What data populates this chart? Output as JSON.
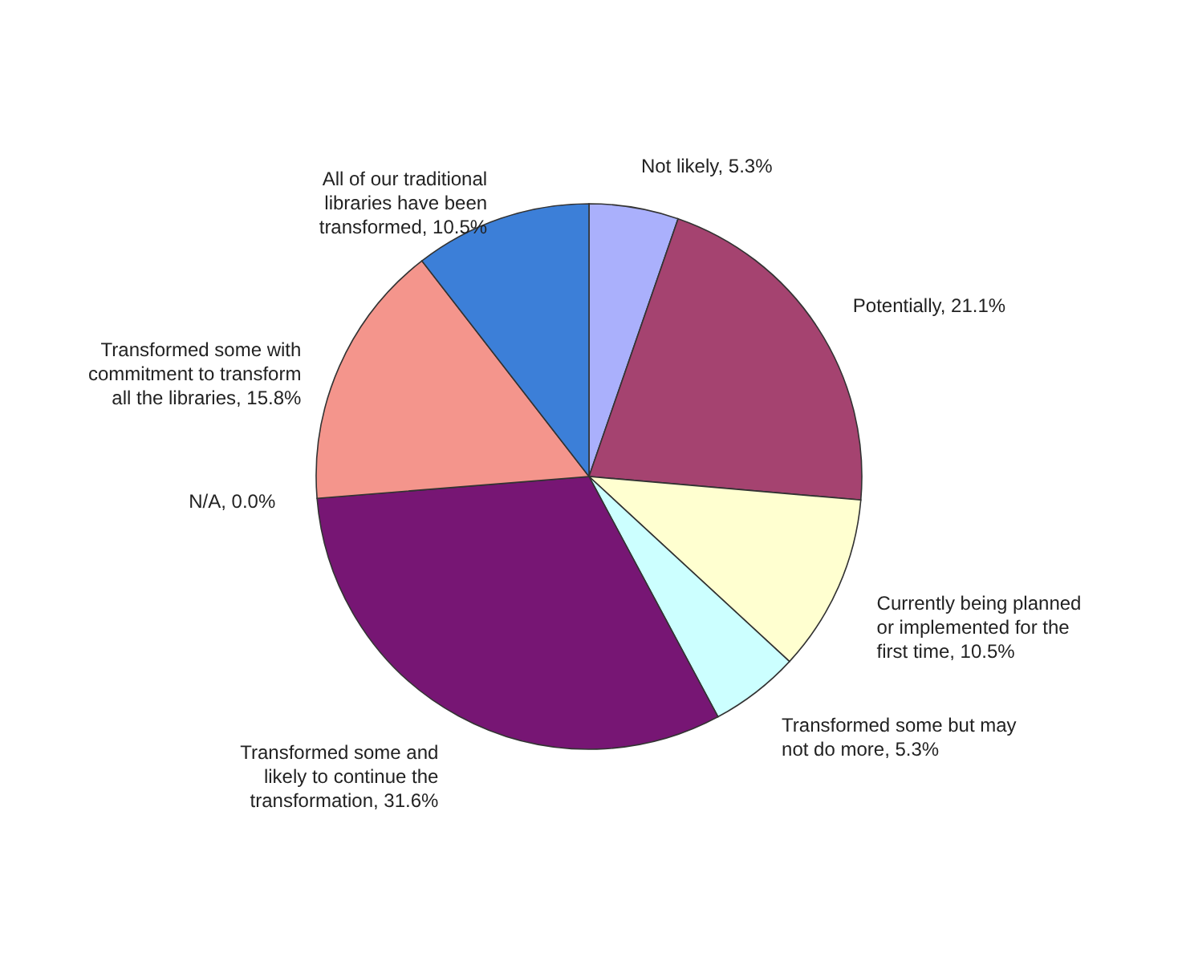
{
  "chart_data": {
    "type": "pie",
    "categories": [
      "Not likely, 5.3%",
      "Potentially, 21.1%",
      "Currently being planned or implemented for the first time, 10.5%",
      "Transformed some but may not do more, 5.3%",
      "Transformed some and likely to continue the transformation, 31.6%",
      "N/A, 0.0%",
      "Transformed some with commitment to transform all the libraries, 15.8%",
      "All of our traditional libraries have been transformed, 10.5%"
    ],
    "values": [
      5.3,
      21.1,
      10.5,
      5.3,
      31.6,
      0.0,
      15.8,
      10.5
    ],
    "colors": [
      "#aab0fc",
      "#a54370",
      "#ffffd0",
      "#ccffff",
      "#771674",
      "#808080",
      "#f4958c",
      "#3c7fd8"
    ]
  }
}
